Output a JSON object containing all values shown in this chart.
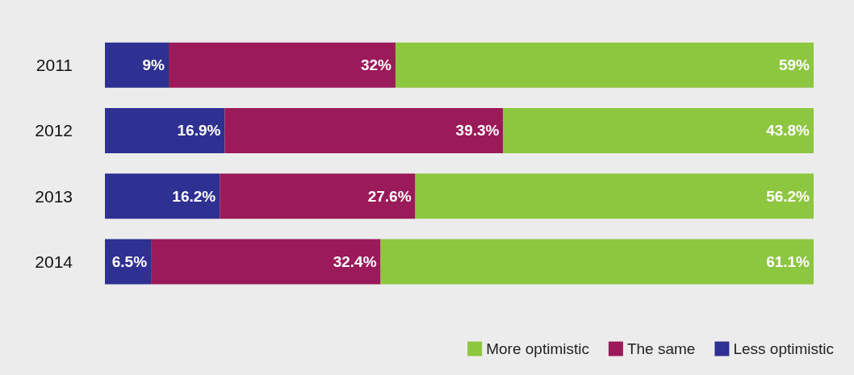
{
  "chart_data": {
    "type": "bar",
    "orientation": "horizontal",
    "stacked": true,
    "categories": [
      "2011",
      "2012",
      "2013",
      "2014"
    ],
    "series": [
      {
        "name": "Less optimistic",
        "color": "#2e3192",
        "values": [
          9,
          16.9,
          16.2,
          6.5
        ],
        "value_labels": [
          "9%",
          "16.9%",
          "16.2%",
          "6.5%"
        ]
      },
      {
        "name": "The same",
        "color": "#9b1b5a",
        "values": [
          32,
          39.3,
          27.6,
          32.4
        ],
        "value_labels": [
          "32%",
          "39.3%",
          "27.6%",
          "32.4%"
        ]
      },
      {
        "name": "More optimistic",
        "color": "#8dc63f",
        "values": [
          59,
          43.8,
          56.2,
          61.1
        ],
        "value_labels": [
          "59%",
          "43.8%",
          "56.2%",
          "61.1%"
        ]
      }
    ],
    "legend": "bottom right"
  }
}
